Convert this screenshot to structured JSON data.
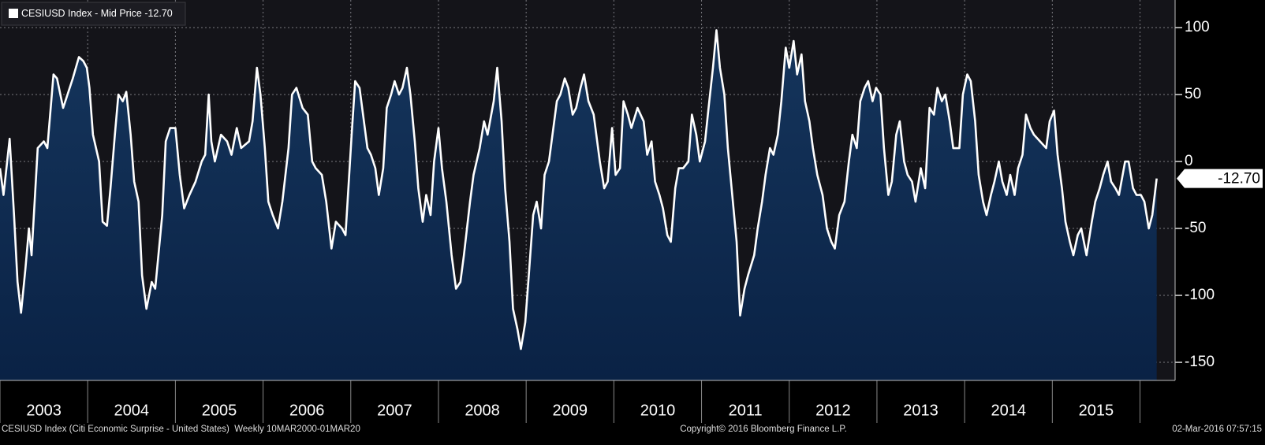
{
  "chart_data": {
    "type": "area",
    "series": [
      {
        "name": "CESIUSD Index - Mid Price",
        "color": "#ffffff",
        "fill": "#0d284a",
        "values": [
          -5,
          -25,
          17,
          -40,
          -90,
          -113,
          -80,
          -50,
          -70,
          10,
          15,
          10,
          65,
          62,
          40,
          50,
          62,
          78,
          75,
          70,
          55,
          20,
          0,
          -45,
          -48,
          -20,
          20,
          50,
          45,
          52,
          20,
          -15,
          -30,
          -85,
          -110,
          -90,
          -95,
          -40,
          15,
          25,
          25,
          -10,
          -35,
          -25,
          -15,
          0,
          5,
          50,
          15,
          0,
          20,
          15,
          5,
          25,
          10,
          15,
          30,
          70,
          50,
          10,
          -30,
          -40,
          -50,
          -30,
          10,
          50,
          55,
          40,
          35,
          0,
          -5,
          -10,
          -30,
          -65,
          -45,
          -50,
          -55,
          20,
          60,
          55,
          35,
          10,
          5,
          -5,
          -25,
          -5,
          40,
          50,
          60,
          50,
          55,
          70,
          50,
          15,
          -20,
          -45,
          -25,
          -40,
          0,
          25,
          -5,
          -30,
          -70,
          -95,
          -90,
          -70,
          -30,
          -10,
          10,
          30,
          20,
          45,
          70,
          30,
          -20,
          -60,
          -110,
          -125,
          -140,
          -120,
          -85,
          -40,
          -30,
          -50,
          -10,
          0,
          20,
          45,
          50,
          62,
          55,
          35,
          40,
          55,
          65,
          45,
          35,
          0,
          -20,
          -15,
          25,
          -10,
          -5,
          45,
          35,
          25,
          40,
          30,
          5,
          15,
          -15,
          -25,
          -35,
          -55,
          -60,
          -20,
          -5,
          -5,
          0,
          35,
          20,
          0,
          15,
          40,
          70,
          98,
          70,
          50,
          10,
          -25,
          -60,
          -115,
          -95,
          -85,
          -70,
          -50,
          -30,
          -10,
          10,
          5,
          20,
          45,
          85,
          70,
          90,
          65,
          80,
          45,
          30,
          10,
          -10,
          -25,
          -50,
          -60,
          -65,
          -40,
          -30,
          0,
          20,
          10,
          45,
          55,
          60,
          45,
          55,
          50,
          10,
          -25,
          -15,
          20,
          30,
          0,
          -10,
          -15,
          -30,
          -5,
          -20,
          40,
          35,
          55,
          45,
          50,
          30,
          10,
          10,
          50,
          65,
          60,
          30,
          -10,
          -30,
          -40,
          -25,
          -15,
          0,
          -15,
          -25,
          -10,
          -25,
          -5,
          5,
          35,
          25,
          20,
          15,
          10,
          30,
          38,
          5,
          -20,
          -45,
          -60,
          -70,
          -55,
          -50,
          -70,
          -45,
          -30,
          -20,
          -10,
          0,
          -15,
          -20,
          -25,
          0,
          0,
          -20,
          -25,
          -25,
          -30,
          -50,
          -40,
          -12.7
        ],
        "last_label": "-12.70"
      }
    ],
    "x": [
      2003.0,
      2003.04,
      2003.11,
      2003.16,
      2003.2,
      2003.24,
      2003.29,
      2003.33,
      2003.36,
      2003.43,
      2003.5,
      2003.54,
      2003.61,
      2003.65,
      2003.72,
      2003.77,
      2003.83,
      2003.9,
      2003.95,
      2003.99,
      2004.02,
      2004.06,
      2004.13,
      2004.17,
      2004.22,
      2004.26,
      2004.31,
      2004.35,
      2004.4,
      2004.44,
      2004.49,
      2004.53,
      2004.58,
      2004.62,
      2004.67,
      2004.73,
      2004.77,
      2004.85,
      2004.89,
      2004.94,
      2005.0,
      2005.05,
      2005.1,
      2005.16,
      2005.23,
      2005.3,
      2005.34,
      2005.38,
      2005.41,
      2005.45,
      2005.52,
      2005.59,
      2005.64,
      2005.7,
      2005.75,
      2005.84,
      2005.88,
      2005.93,
      2005.97,
      2006.02,
      2006.06,
      2006.11,
      2006.17,
      2006.22,
      2006.29,
      2006.33,
      2006.38,
      2006.45,
      2006.51,
      2006.56,
      2006.6,
      2006.67,
      2006.72,
      2006.78,
      2006.83,
      2006.9,
      2006.94,
      2007.01,
      2007.05,
      2007.1,
      2007.14,
      2007.19,
      2007.23,
      2007.28,
      2007.32,
      2007.37,
      2007.41,
      2007.46,
      2007.5,
      2007.55,
      2007.59,
      2007.64,
      2007.68,
      2007.73,
      2007.77,
      2007.82,
      2007.86,
      2007.91,
      2007.95,
      2008.0,
      2008.04,
      2008.09,
      2008.15,
      2008.2,
      2008.25,
      2008.29,
      2008.36,
      2008.4,
      2008.47,
      2008.52,
      2008.56,
      2008.63,
      2008.67,
      2008.72,
      2008.76,
      2008.81,
      2008.85,
      2008.9,
      2008.94,
      2008.99,
      2009.03,
      2009.08,
      2009.12,
      2009.17,
      2009.21,
      2009.26,
      2009.3,
      2009.35,
      2009.39,
      2009.44,
      2009.48,
      2009.53,
      2009.57,
      2009.62,
      2009.66,
      2009.71,
      2009.77,
      2009.84,
      2009.89,
      2009.93,
      2009.98,
      2010.02,
      2010.07,
      2010.11,
      2010.16,
      2010.2,
      2010.27,
      2010.34,
      2010.38,
      2010.43,
      2010.47,
      2010.52,
      2010.56,
      2010.61,
      2010.65,
      2010.7,
      2010.74,
      2010.79,
      2010.85,
      2010.89,
      2010.94,
      2010.98,
      2011.04,
      2011.08,
      2011.13,
      2011.17,
      2011.21,
      2011.26,
      2011.3,
      2011.35,
      2011.4,
      2011.44,
      2011.49,
      2011.53,
      2011.6,
      2011.64,
      2011.69,
      2011.73,
      2011.78,
      2011.82,
      2011.87,
      2011.91,
      2011.96,
      2012.0,
      2012.05,
      2012.09,
      2012.14,
      2012.18,
      2012.23,
      2012.27,
      2012.32,
      2012.38,
      2012.43,
      2012.48,
      2012.52,
      2012.57,
      2012.63,
      2012.68,
      2012.72,
      2012.77,
      2012.81,
      2012.86,
      2012.9,
      2012.95,
      2012.99,
      2013.04,
      2013.08,
      2013.13,
      2013.17,
      2013.22,
      2013.26,
      2013.31,
      2013.35,
      2013.4,
      2013.44,
      2013.5,
      2013.55,
      2013.6,
      2013.65,
      2013.69,
      2013.74,
      2013.78,
      2013.83,
      2013.87,
      2013.94,
      2013.98,
      2014.03,
      2014.07,
      2014.12,
      2014.16,
      2014.21,
      2014.25,
      2014.3,
      2014.34,
      2014.39,
      2014.43,
      2014.48,
      2014.52,
      2014.57,
      2014.61,
      2014.66,
      2014.7,
      2014.75,
      2014.79,
      2014.86,
      2014.93,
      2014.97,
      2015.02,
      2015.06,
      2015.11,
      2015.15,
      2015.2,
      2015.24,
      2015.29,
      2015.33,
      2015.39,
      2015.45,
      2015.49,
      2015.54,
      2015.58,
      2015.63,
      2015.67,
      2015.72,
      2015.76,
      2015.83,
      2015.87,
      2015.92,
      2015.96,
      2016.01,
      2016.05,
      2016.1,
      2016.14,
      2016.19
    ],
    "xlim": [
      2003.0,
      2016.4
    ],
    "xticks": [
      {
        "value": 2003.5,
        "label": "2003"
      },
      {
        "value": 2004.5,
        "label": "2004"
      },
      {
        "value": 2005.5,
        "label": "2005"
      },
      {
        "value": 2006.5,
        "label": "2006"
      },
      {
        "value": 2007.5,
        "label": "2007"
      },
      {
        "value": 2008.5,
        "label": "2008"
      },
      {
        "value": 2009.5,
        "label": "2009"
      },
      {
        "value": 2010.5,
        "label": "2010"
      },
      {
        "value": 2011.5,
        "label": "2011"
      },
      {
        "value": 2012.5,
        "label": "2012"
      },
      {
        "value": 2013.5,
        "label": "2013"
      },
      {
        "value": 2014.5,
        "label": "2014"
      },
      {
        "value": 2015.5,
        "label": "2015"
      }
    ],
    "ylim": [
      -163.5,
      120.6
    ],
    "yticks": [
      100,
      50,
      0,
      -50,
      -100,
      -150
    ],
    "grid": true,
    "legend": "upper left",
    "footer": {
      "left": "CESIUSD Index (Citi Economic Surprise - United States)  Weekly 10MAR2000-01MAR20",
      "center": "Copyright© 2016 Bloomberg Finance L.P.",
      "right": "02-Mar-2016 07:57:15"
    }
  }
}
